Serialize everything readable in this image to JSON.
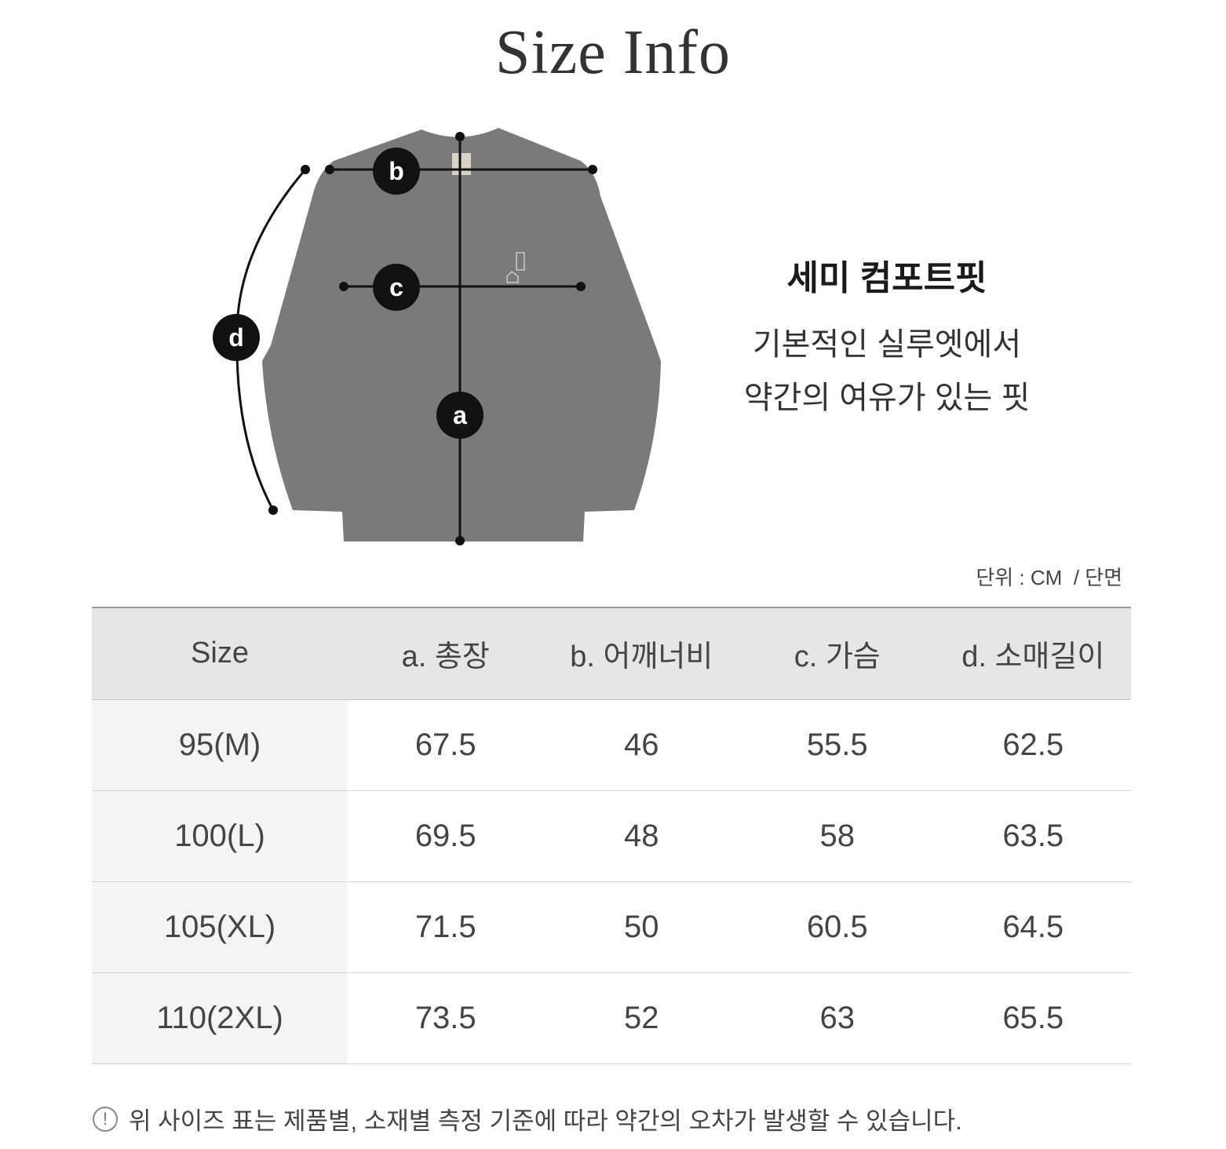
{
  "title": "Size Info",
  "diagram": {
    "markers": [
      "a",
      "b",
      "c",
      "d"
    ],
    "garment_color": "#7a7a7a"
  },
  "fit": {
    "name": "세미 컴포트핏",
    "description_lines": [
      "기본적인 실루엣에서",
      "약간의 여유가 있는 핏"
    ]
  },
  "unit_label": "단위 : CM  / 단면",
  "table": {
    "headers": [
      "Size",
      "a. 총장",
      "b. 어깨너비",
      "c. 가슴",
      "d. 소매길이"
    ],
    "rows": [
      [
        "95(M)",
        "67.5",
        "46",
        "55.5",
        "62.5"
      ],
      [
        "100(L)",
        "69.5",
        "48",
        "58",
        "63.5"
      ],
      [
        "105(XL)",
        "71.5",
        "50",
        "60.5",
        "64.5"
      ],
      [
        "110(2XL)",
        "73.5",
        "52",
        "63",
        "65.5"
      ]
    ]
  },
  "note": {
    "icon": "exclamation-circle-icon",
    "icon_glyph": "!",
    "text": "위 사이즈 표는 제품별, 소재별 측정 기준에 따라 약간의 오차가 발생할 수 있습니다."
  }
}
